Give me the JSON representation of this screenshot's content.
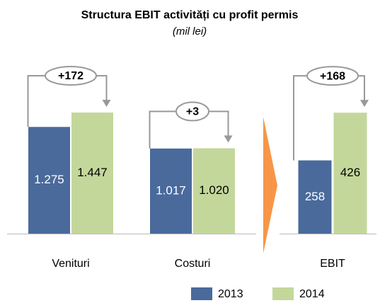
{
  "title": "Structura EBIT activități cu profit permis",
  "subtitle": "(mil lei)",
  "chart_data": [
    {
      "type": "bar",
      "categories": [
        "Venituri",
        "Costuri"
      ],
      "series": [
        {
          "name": "2013",
          "color": "#4a6a9c",
          "values": [
            1275,
            1017
          ],
          "value_labels": [
            "1.275",
            "1.017"
          ]
        },
        {
          "name": "2014",
          "color": "#c4d79b",
          "values": [
            1447,
            1020
          ],
          "value_labels": [
            "1.447",
            "1.020"
          ]
        }
      ],
      "annotations": [
        "+172",
        "+3"
      ]
    },
    {
      "type": "bar",
      "categories": [
        "EBIT"
      ],
      "series": [
        {
          "color": "#4a6a9c",
          "values": [
            258
          ],
          "value_labels": [
            "258"
          ]
        },
        {
          "color": "#c4d79b",
          "values": [
            426
          ],
          "value_labels": [
            "426"
          ]
        }
      ],
      "annotations": [
        "+168"
      ]
    }
  ]
}
